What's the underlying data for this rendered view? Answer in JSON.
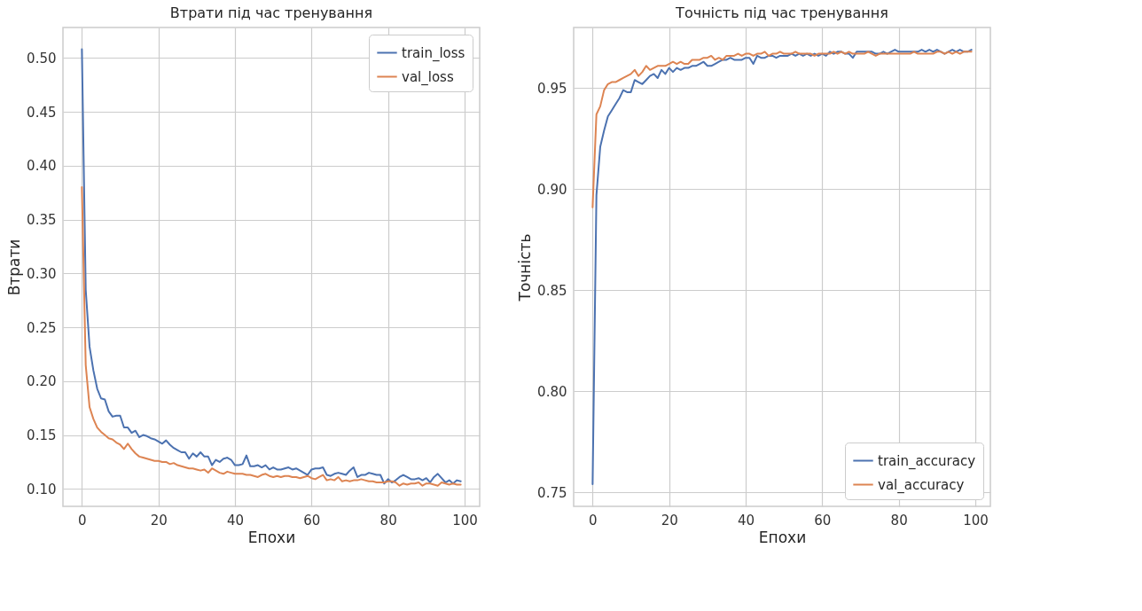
{
  "chart_data": [
    {
      "type": "line",
      "title": "Втрати під час тренування",
      "xlabel": "Епохи",
      "ylabel": "Втрати",
      "grid": true,
      "legend": "top right",
      "line_style": "solid",
      "x": [
        0,
        1,
        2,
        3,
        4,
        5,
        6,
        7,
        8,
        9,
        10,
        11,
        12,
        13,
        14,
        15,
        16,
        17,
        18,
        19,
        20,
        21,
        22,
        23,
        24,
        25,
        26,
        27,
        28,
        29,
        30,
        31,
        32,
        33,
        34,
        35,
        36,
        37,
        38,
        39,
        40,
        41,
        42,
        43,
        44,
        45,
        46,
        47,
        48,
        49,
        50,
        51,
        52,
        53,
        54,
        55,
        56,
        57,
        58,
        59,
        60,
        61,
        62,
        63,
        64,
        65,
        66,
        67,
        68,
        69,
        70,
        71,
        72,
        73,
        74,
        75,
        76,
        77,
        78,
        79,
        80,
        81,
        82,
        83,
        84,
        85,
        86,
        87,
        88,
        89,
        90,
        91,
        92,
        93,
        94,
        95,
        96,
        97,
        98,
        99
      ],
      "xlim": [
        -4.95,
        103.95
      ],
      "xticks": [
        0,
        20,
        40,
        60,
        80,
        100
      ],
      "ylim": [
        0.0838,
        0.5282
      ],
      "yticks": [
        {
          "value": 0.1,
          "label": "0.10"
        },
        0.15,
        {
          "value": 0.2,
          "label": "0.20"
        },
        0.25,
        {
          "value": 0.3,
          "label": "0.30"
        },
        0.35,
        {
          "value": 0.4,
          "label": "0.40"
        },
        0.45,
        {
          "value": 0.5,
          "label": "0.50"
        }
      ],
      "series": [
        {
          "name": "train_loss",
          "color": "#4c72b0",
          "values": [
            0.508,
            0.285,
            0.232,
            0.21,
            0.193,
            0.184,
            0.183,
            0.172,
            0.167,
            0.168,
            0.168,
            0.157,
            0.157,
            0.152,
            0.154,
            0.148,
            0.15,
            0.149,
            0.147,
            0.146,
            0.144,
            0.142,
            0.145,
            0.141,
            0.138,
            0.136,
            0.134,
            0.134,
            0.128,
            0.133,
            0.13,
            0.134,
            0.13,
            0.13,
            0.122,
            0.127,
            0.125,
            0.128,
            0.129,
            0.127,
            0.122,
            0.122,
            0.123,
            0.131,
            0.121,
            0.121,
            0.122,
            0.12,
            0.122,
            0.118,
            0.12,
            0.118,
            0.118,
            0.119,
            0.12,
            0.118,
            0.119,
            0.117,
            0.115,
            0.113,
            0.118,
            0.119,
            0.119,
            0.12,
            0.113,
            0.112,
            0.114,
            0.115,
            0.114,
            0.113,
            0.117,
            0.12,
            0.111,
            0.113,
            0.113,
            0.115,
            0.114,
            0.113,
            0.113,
            0.105,
            0.109,
            0.106,
            0.108,
            0.111,
            0.113,
            0.111,
            0.109,
            0.109,
            0.11,
            0.108,
            0.11,
            0.106,
            0.111,
            0.114,
            0.11,
            0.106,
            0.108,
            0.105,
            0.108,
            0.107
          ]
        },
        {
          "name": "val_loss",
          "color": "#dd8452",
          "values": [
            0.38,
            0.215,
            0.176,
            0.165,
            0.157,
            0.153,
            0.15,
            0.147,
            0.146,
            0.143,
            0.141,
            0.137,
            0.142,
            0.137,
            0.133,
            0.13,
            0.129,
            0.128,
            0.127,
            0.126,
            0.126,
            0.125,
            0.125,
            0.123,
            0.124,
            0.122,
            0.121,
            0.12,
            0.119,
            0.119,
            0.118,
            0.117,
            0.118,
            0.115,
            0.119,
            0.117,
            0.115,
            0.114,
            0.116,
            0.115,
            0.114,
            0.114,
            0.114,
            0.113,
            0.113,
            0.112,
            0.111,
            0.113,
            0.114,
            0.112,
            0.111,
            0.112,
            0.111,
            0.112,
            0.112,
            0.111,
            0.111,
            0.11,
            0.111,
            0.112,
            0.11,
            0.109,
            0.111,
            0.113,
            0.108,
            0.109,
            0.108,
            0.111,
            0.107,
            0.108,
            0.107,
            0.108,
            0.108,
            0.109,
            0.108,
            0.107,
            0.107,
            0.106,
            0.106,
            0.106,
            0.107,
            0.107,
            0.106,
            0.103,
            0.105,
            0.104,
            0.105,
            0.105,
            0.106,
            0.103,
            0.105,
            0.105,
            0.104,
            0.103,
            0.106,
            0.105,
            0.104,
            0.105,
            0.104,
            0.104
          ]
        }
      ]
    },
    {
      "type": "line",
      "title": "Точність під час тренування",
      "xlabel": "Епохи",
      "ylabel": "Точність",
      "grid": true,
      "legend": "bottom right",
      "line_style": "solid",
      "x": [
        0,
        1,
        2,
        3,
        4,
        5,
        6,
        7,
        8,
        9,
        10,
        11,
        12,
        13,
        14,
        15,
        16,
        17,
        18,
        19,
        20,
        21,
        22,
        23,
        24,
        25,
        26,
        27,
        28,
        29,
        30,
        31,
        32,
        33,
        34,
        35,
        36,
        37,
        38,
        39,
        40,
        41,
        42,
        43,
        44,
        45,
        46,
        47,
        48,
        49,
        50,
        51,
        52,
        53,
        54,
        55,
        56,
        57,
        58,
        59,
        60,
        61,
        62,
        63,
        64,
        65,
        66,
        67,
        68,
        69,
        70,
        71,
        72,
        73,
        74,
        75,
        76,
        77,
        78,
        79,
        80,
        81,
        82,
        83,
        84,
        85,
        86,
        87,
        88,
        89,
        90,
        91,
        92,
        93,
        94,
        95,
        96,
        97,
        98,
        99
      ],
      "xlim": [
        -4.95,
        103.95
      ],
      "xticks": [
        0,
        20,
        40,
        60,
        80,
        100
      ],
      "ylim": [
        0.743,
        0.98
      ],
      "yticks": [
        0.75,
        {
          "value": 0.8,
          "label": "0.80"
        },
        0.85,
        {
          "value": 0.9,
          "label": "0.90"
        },
        0.95
      ],
      "series": [
        {
          "name": "train_accuracy",
          "color": "#4c72b0",
          "values": [
            0.754,
            0.897,
            0.921,
            0.929,
            0.936,
            0.939,
            0.942,
            0.945,
            0.949,
            0.948,
            0.948,
            0.954,
            0.953,
            0.952,
            0.954,
            0.956,
            0.957,
            0.955,
            0.959,
            0.957,
            0.96,
            0.958,
            0.96,
            0.959,
            0.96,
            0.96,
            0.961,
            0.961,
            0.962,
            0.963,
            0.961,
            0.961,
            0.962,
            0.963,
            0.964,
            0.964,
            0.965,
            0.964,
            0.964,
            0.964,
            0.965,
            0.965,
            0.962,
            0.966,
            0.965,
            0.965,
            0.966,
            0.966,
            0.965,
            0.966,
            0.966,
            0.966,
            0.967,
            0.966,
            0.967,
            0.966,
            0.967,
            0.966,
            0.967,
            0.966,
            0.967,
            0.966,
            0.968,
            0.967,
            0.968,
            0.968,
            0.967,
            0.967,
            0.965,
            0.968,
            0.968,
            0.968,
            0.968,
            0.968,
            0.967,
            0.967,
            0.968,
            0.967,
            0.968,
            0.969,
            0.968,
            0.968,
            0.968,
            0.968,
            0.968,
            0.968,
            0.969,
            0.968,
            0.969,
            0.968,
            0.969,
            0.968,
            0.967,
            0.968,
            0.969,
            0.968,
            0.969,
            0.968,
            0.968,
            0.969
          ]
        },
        {
          "name": "val_accuracy",
          "color": "#dd8452",
          "values": [
            0.891,
            0.937,
            0.941,
            0.949,
            0.952,
            0.953,
            0.953,
            0.954,
            0.955,
            0.956,
            0.957,
            0.959,
            0.956,
            0.958,
            0.961,
            0.959,
            0.96,
            0.961,
            0.961,
            0.961,
            0.962,
            0.963,
            0.962,
            0.963,
            0.962,
            0.962,
            0.964,
            0.964,
            0.964,
            0.965,
            0.965,
            0.966,
            0.964,
            0.965,
            0.964,
            0.966,
            0.966,
            0.966,
            0.967,
            0.966,
            0.967,
            0.967,
            0.966,
            0.967,
            0.967,
            0.968,
            0.966,
            0.967,
            0.967,
            0.968,
            0.967,
            0.967,
            0.967,
            0.968,
            0.967,
            0.967,
            0.967,
            0.967,
            0.966,
            0.967,
            0.967,
            0.967,
            0.967,
            0.968,
            0.967,
            0.968,
            0.967,
            0.968,
            0.967,
            0.967,
            0.967,
            0.967,
            0.968,
            0.967,
            0.966,
            0.967,
            0.967,
            0.967,
            0.967,
            0.967,
            0.967,
            0.967,
            0.967,
            0.967,
            0.968,
            0.967,
            0.967,
            0.967,
            0.967,
            0.967,
            0.968,
            0.968,
            0.967,
            0.968,
            0.967,
            0.968,
            0.967,
            0.968,
            0.968,
            0.968
          ]
        }
      ]
    }
  ]
}
